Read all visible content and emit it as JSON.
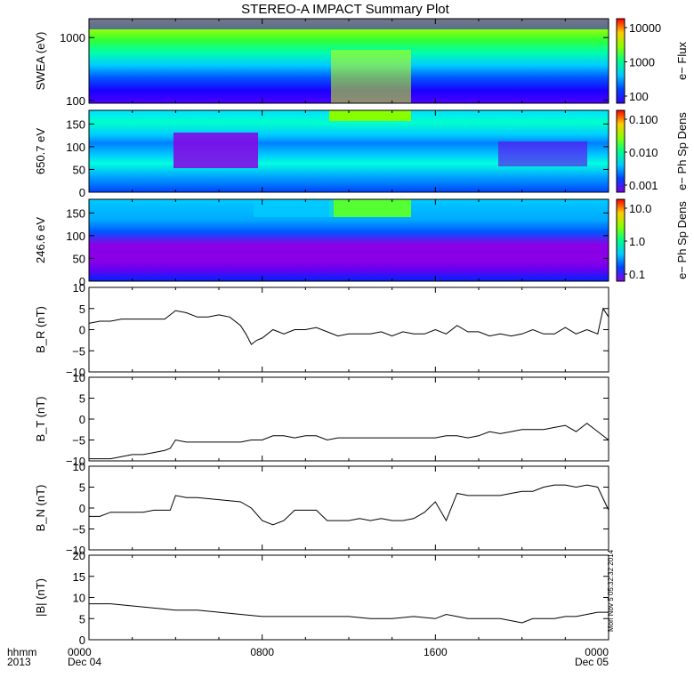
{
  "title": "STEREO-A IMPACT Summary Plot",
  "footer": {
    "left_line1": "hhmm",
    "left_line2": "2013",
    "date_start": "Dec 04",
    "date_end": "Dec 05"
  },
  "stamp": "Mon Nov  5 05:32:32 2014",
  "chart_data": [
    {
      "type": "heatmap",
      "ylabel": "SWEA (eV)",
      "ylim": [
        90,
        2000
      ],
      "yscale": "log",
      "yticks": [
        "100",
        "1000"
      ],
      "colorbar_label": "e− Flux",
      "colorbar_ticks": [
        "10000",
        "1000",
        "100"
      ],
      "colorbar_scale": "log",
      "rainbow": [
        "#ff0000",
        "#ffcc00",
        "#88ff00",
        "#00ff88",
        "#00ccff",
        "#0044ff",
        "#3300ff"
      ]
    },
    {
      "type": "heatmap",
      "ylabel": "650.7 eV",
      "ylim": [
        0,
        180
      ],
      "yticks": [
        "0",
        "50",
        "100",
        "150"
      ],
      "colorbar_label": "e− Ph Sp Dens",
      "colorbar_ticks": [
        "0.100",
        "0.010",
        "0.001"
      ],
      "colorbar_scale": "log",
      "rainbow": [
        "#ff0000",
        "#ffcc00",
        "#88ff00",
        "#00ff88",
        "#00ccff",
        "#0044ff",
        "#7a00e6"
      ]
    },
    {
      "type": "heatmap",
      "ylabel": "246.6 eV",
      "ylim": [
        0,
        180
      ],
      "yticks": [
        "0",
        "50",
        "100",
        "150"
      ],
      "colorbar_label": "e− Ph Sp Dens",
      "colorbar_ticks": [
        "10.0",
        "1.0",
        "0.1"
      ],
      "colorbar_scale": "log",
      "rainbow": [
        "#ff0000",
        "#ffcc00",
        "#88ff00",
        "#00ff88",
        "#00ccff",
        "#0044ff",
        "#8a00e6"
      ]
    },
    {
      "type": "line",
      "ylabel": "B_R (nT)",
      "ylim": [
        -10,
        10
      ],
      "yticks": [
        "10",
        "5",
        "0",
        "−5",
        "−10"
      ],
      "x": [
        0,
        0.5,
        1,
        1.5,
        2,
        2.5,
        3,
        3.5,
        4,
        4.5,
        5,
        5.5,
        6,
        6.5,
        7,
        7.25,
        7.5,
        7.75,
        8,
        8.5,
        9,
        9.5,
        10,
        10.5,
        11,
        11.5,
        12,
        12.5,
        13,
        13.5,
        14,
        14.5,
        15,
        15.5,
        16,
        16.5,
        17,
        17.5,
        18,
        18.5,
        19,
        19.5,
        20,
        20.5,
        21,
        21.5,
        22,
        22.5,
        23,
        23.5,
        23.75,
        24
      ],
      "y": [
        1.5,
        2,
        2,
        2.5,
        2.5,
        2.5,
        2.5,
        2.5,
        4.5,
        4,
        3,
        3,
        3.5,
        3,
        1,
        -1,
        -3.5,
        -2.5,
        -2,
        0,
        -1,
        0,
        0,
        0.5,
        -0.5,
        -1.5,
        -1,
        -1,
        -1,
        -0.5,
        -1.5,
        -0.5,
        -1,
        -1,
        0,
        -1,
        1,
        -0.5,
        -0.5,
        -1.5,
        -1,
        -1.5,
        -1,
        0,
        -1,
        -1,
        0.5,
        -1,
        0,
        -1,
        5,
        3
      ]
    },
    {
      "type": "line",
      "ylabel": "B_T (nT)",
      "ylim": [
        -10,
        10
      ],
      "yticks": [
        "10",
        "5",
        "0",
        "−5",
        "−10"
      ],
      "x": [
        0,
        0.5,
        1,
        1.5,
        2,
        2.5,
        3,
        3.5,
        3.75,
        4,
        4.5,
        5,
        6,
        7,
        7.5,
        8,
        8.5,
        9,
        9.5,
        10,
        10.5,
        11,
        11.5,
        12,
        12.5,
        13,
        13.5,
        14,
        14.5,
        15,
        15.5,
        16,
        16.5,
        17,
        17.5,
        18,
        18.5,
        19,
        19.5,
        20,
        20.5,
        21,
        21.5,
        22,
        22.5,
        23,
        23.5,
        24
      ],
      "y": [
        -9.5,
        -9.5,
        -9.5,
        -9,
        -8.5,
        -8.5,
        -8,
        -7.5,
        -7,
        -5,
        -5.5,
        -5.5,
        -5.5,
        -5.5,
        -5,
        -5,
        -4,
        -4,
        -4.5,
        -4,
        -4,
        -5,
        -4.5,
        -4.5,
        -4.5,
        -4.5,
        -4.5,
        -4.5,
        -4.5,
        -4.5,
        -4.5,
        -4.5,
        -4,
        -4,
        -4.5,
        -4,
        -3,
        -3.5,
        -3,
        -2.5,
        -2.5,
        -2.5,
        -2,
        -1.5,
        -3,
        -1,
        -3,
        -5
      ]
    },
    {
      "type": "line",
      "ylabel": "B_N (nT)",
      "ylim": [
        -10,
        10
      ],
      "yticks": [
        "10",
        "5",
        "0",
        "−5",
        "−10"
      ],
      "x": [
        0,
        0.5,
        1,
        1.5,
        2,
        2.5,
        3,
        3.5,
        3.75,
        4,
        4.5,
        5,
        6,
        7,
        7.5,
        8,
        8.5,
        9,
        9.5,
        10,
        10.5,
        11,
        11.5,
        12,
        12.5,
        13,
        13.5,
        14,
        14.5,
        15,
        15.5,
        16,
        16.5,
        17,
        17.5,
        18,
        18.5,
        19,
        19.5,
        20,
        20.5,
        21,
        21.5,
        22,
        22.5,
        23,
        23.5,
        24
      ],
      "y": [
        -2,
        -2,
        -1,
        -1,
        -1,
        -1,
        -0.5,
        -0.5,
        -0.5,
        3,
        2.5,
        2.5,
        2,
        1.5,
        0,
        -3,
        -4,
        -3,
        -0.5,
        -0.5,
        -0.5,
        -3,
        -3,
        -3,
        -2.5,
        -3,
        -2.5,
        -3,
        -3,
        -2.5,
        -1,
        1.5,
        -3,
        3.5,
        3,
        3,
        3,
        3,
        3.5,
        4,
        4,
        5,
        5.5,
        5.5,
        5,
        5.5,
        5,
        -0.5
      ]
    },
    {
      "type": "line",
      "ylabel": "|B| (nT)",
      "ylim": [
        0,
        20
      ],
      "yticks": [
        "20",
        "15",
        "10",
        "5",
        "0"
      ],
      "x": [
        0,
        1,
        2,
        3,
        4,
        5,
        6,
        7,
        8,
        9,
        10,
        11,
        12,
        13,
        14,
        15,
        16,
        16.5,
        17,
        17.5,
        18,
        18.5,
        19,
        19.5,
        20,
        20.5,
        21,
        21.5,
        22,
        22.5,
        23,
        23.5,
        24
      ],
      "y": [
        8.5,
        8.5,
        8,
        7.5,
        7,
        7,
        6.5,
        6,
        5.5,
        5.5,
        5.5,
        5.5,
        5.5,
        5,
        5,
        5.5,
        5,
        6,
        5.5,
        5,
        5,
        5,
        5,
        4.5,
        4,
        5,
        5,
        5,
        5.5,
        5.5,
        6,
        6.5,
        6.5
      ]
    }
  ],
  "x_axis": {
    "type": "time",
    "range": [
      "0000",
      "0000"
    ],
    "ticks": [
      "0000",
      "0800",
      "1600",
      "0000"
    ]
  }
}
